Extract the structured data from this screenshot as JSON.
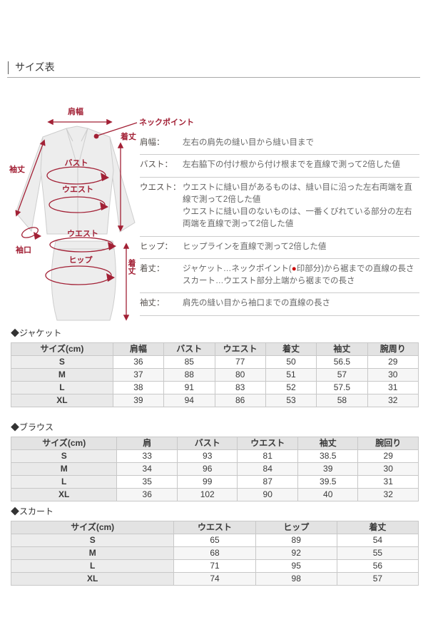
{
  "page_title": "サイズ表",
  "colors": {
    "accent_red": "#a22035",
    "dot_red": "#cc0000",
    "table_header_bg": "#e3e3e3",
    "table_sizecol_bg": "#ededed"
  },
  "diagram": {
    "shoulder_width": "肩幅",
    "neck_point": "ネックポイント",
    "jacket_length": "着丈",
    "sleeve_length": "袖丈",
    "bust": "バスト",
    "jacket_waist": "ウエスト",
    "cuff": "袖口",
    "skirt_waist": "ウエスト",
    "hip": "ヒップ",
    "skirt_length": "着丈"
  },
  "definitions": [
    {
      "term": "肩幅：",
      "text": "左右の肩先の縫い目から縫い目まで"
    },
    {
      "term": "バスト：",
      "text": "左右脇下の付け根から付け根までを直線で測って2倍した値"
    },
    {
      "term": "ウエスト：",
      "text": "ウエストに縫い目があるものは、縫い目に沿った左右両端を直線で測って2倍した値",
      "text2": "ウエストに縫い目のないものは、一番くびれている部分の左右両端を直線で測って2倍した値"
    },
    {
      "term": "ヒップ：",
      "text": "ヒップラインを直線で測って2倍した値"
    },
    {
      "term": "着丈：",
      "text_pre": "ジャケット…ネックポイント(",
      "dot": "●",
      "text_post": "印部分)から裾までの直線の長さ",
      "text2": "スカート…ウエスト部分上端から裾までの長さ"
    },
    {
      "term": "袖丈：",
      "text": "肩先の縫い目から袖口までの直線の長さ"
    }
  ],
  "tables": [
    {
      "title": "◆ジャケット",
      "headers": [
        "サイズ(cm)",
        "肩幅",
        "バスト",
        "ウエスト",
        "着丈",
        "袖丈",
        "腕周り"
      ],
      "rows": [
        {
          "size": "S",
          "values": [
            "36",
            "85",
            "77",
            "50",
            "56.5",
            "29"
          ]
        },
        {
          "size": "M",
          "values": [
            "37",
            "88",
            "80",
            "51",
            "57",
            "30"
          ]
        },
        {
          "size": "L",
          "values": [
            "38",
            "91",
            "83",
            "52",
            "57.5",
            "31"
          ]
        },
        {
          "size": "XL",
          "values": [
            "39",
            "94",
            "86",
            "53",
            "58",
            "32"
          ]
        }
      ]
    },
    {
      "title": "◆ブラウス",
      "headers": [
        "サイズ(cm)",
        "肩",
        "バスト",
        "ウエスト",
        "袖丈",
        "腕回り"
      ],
      "rows": [
        {
          "size": "S",
          "values": [
            "33",
            "93",
            "81",
            "38.5",
            "29"
          ]
        },
        {
          "size": "M",
          "values": [
            "34",
            "96",
            "84",
            "39",
            "30"
          ]
        },
        {
          "size": "L",
          "values": [
            "35",
            "99",
            "87",
            "39.5",
            "31"
          ]
        },
        {
          "size": "XL",
          "values": [
            "36",
            "102",
            "90",
            "40",
            "32"
          ]
        }
      ]
    },
    {
      "title": "◆スカート",
      "headers": [
        "サイズ(cm)",
        "ウエスト",
        "ヒップ",
        "着丈"
      ],
      "rows": [
        {
          "size": "S",
          "values": [
            "65",
            "89",
            "54"
          ]
        },
        {
          "size": "M",
          "values": [
            "68",
            "92",
            "55"
          ]
        },
        {
          "size": "L",
          "values": [
            "71",
            "95",
            "56"
          ]
        },
        {
          "size": "XL",
          "values": [
            "74",
            "98",
            "57"
          ]
        }
      ]
    }
  ]
}
